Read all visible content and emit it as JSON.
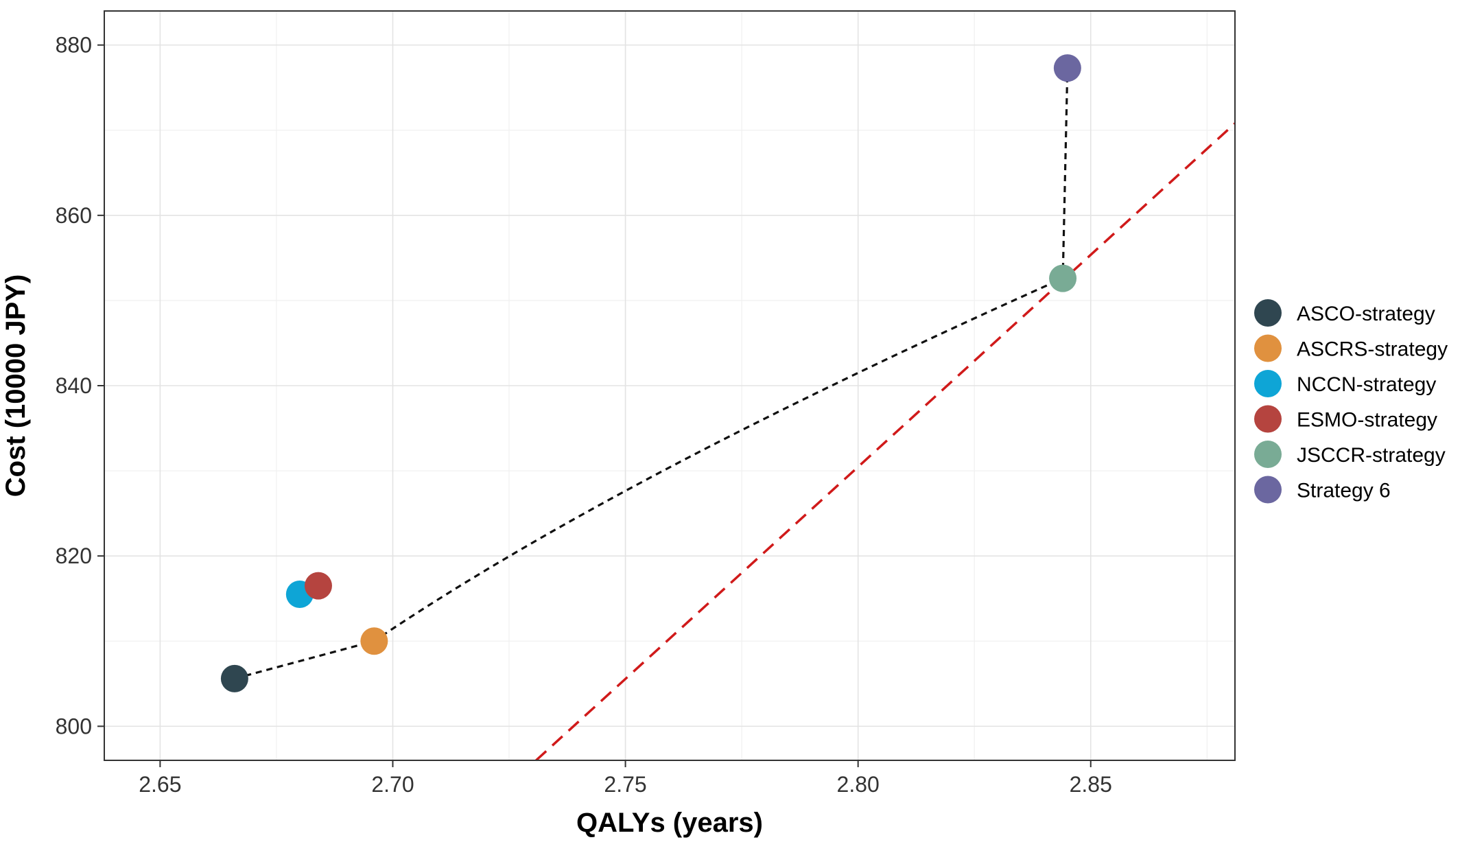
{
  "chart_data": {
    "type": "scatter",
    "xlabel": "QALYs (years)",
    "ylabel": "Cost (10000 JPY)",
    "xlim": [
      2.638,
      2.881
    ],
    "ylim": [
      796,
      884
    ],
    "x_ticks": [
      2.65,
      2.7,
      2.75,
      2.8,
      2.85
    ],
    "x_tick_labels": [
      "2.65",
      "2.70",
      "2.75",
      "2.80",
      "2.85"
    ],
    "y_ticks": [
      800,
      820,
      840,
      860,
      880
    ],
    "y_tick_labels": [
      "800",
      "820",
      "840",
      "860",
      "880"
    ],
    "grid": true,
    "legend_position": "right",
    "series": [
      {
        "name": "ASCO-strategy",
        "x": 2.666,
        "y": 805.6,
        "color": "#2f4650"
      },
      {
        "name": "ASCRS-strategy",
        "x": 2.696,
        "y": 810.0,
        "color": "#e0913f"
      },
      {
        "name": "NCCN-strategy",
        "x": 2.68,
        "y": 815.5,
        "color": "#0ea5d6"
      },
      {
        "name": "ESMO-strategy",
        "x": 2.684,
        "y": 816.5,
        "color": "#b5443f"
      },
      {
        "name": "JSCCR-strategy",
        "x": 2.844,
        "y": 852.6,
        "color": "#79ab95"
      },
      {
        "name": "Strategy 6",
        "x": 2.845,
        "y": 877.3,
        "color": "#6b67a0"
      }
    ],
    "frontier_path": [
      [
        2.666,
        805.6
      ],
      [
        2.696,
        810.0
      ],
      [
        2.844,
        852.6
      ],
      [
        2.845,
        877.3
      ]
    ],
    "threshold_line": {
      "points": [
        [
          2.7308,
          796
        ],
        [
          2.881,
          870.8
        ]
      ],
      "color": "#d01a1a"
    }
  }
}
